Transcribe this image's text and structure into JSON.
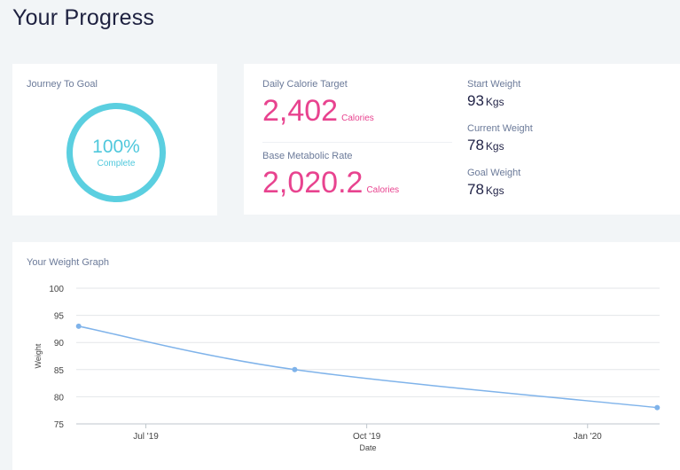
{
  "page": {
    "title": "Your Progress"
  },
  "journey": {
    "label": "Journey To Goal",
    "percent": "100%",
    "status": "Complete"
  },
  "calories": {
    "target_label": "Daily Calorie Target",
    "target_value": "2,402",
    "target_unit": "Calories",
    "bmr_label": "Base Metabolic Rate",
    "bmr_value": "2,020.2",
    "bmr_unit": "Calories"
  },
  "weights": {
    "start_label": "Start Weight",
    "start_value": "93",
    "start_unit": "Kgs",
    "current_label": "Current Weight",
    "current_value": "78",
    "current_unit": "Kgs",
    "goal_label": "Goal Weight",
    "goal_value": "78",
    "goal_unit": "Kgs"
  },
  "colors": {
    "accent_pink": "#e8438f",
    "accent_cyan": "#5bcfe0",
    "line_blue": "#7fb3ea"
  },
  "chart_data": {
    "type": "line",
    "title": "Your Weight Graph",
    "xlabel": "Date",
    "ylabel": "Weight",
    "ylim": [
      75,
      100
    ],
    "yticks": [
      75,
      80,
      85,
      90,
      95,
      100
    ],
    "xlim": [
      "2019-06-02",
      "2020-01-31"
    ],
    "xticks": [
      {
        "label": "Jul '19",
        "date": "2019-07-01"
      },
      {
        "label": "Oct '19",
        "date": "2019-10-01"
      },
      {
        "label": "Jan '20",
        "date": "2020-01-01"
      }
    ],
    "grid": true,
    "series": [
      {
        "name": "Weight",
        "points": [
          {
            "date": "2019-06-03",
            "value": 93
          },
          {
            "date": "2019-09-01",
            "value": 85
          },
          {
            "date": "2020-01-30",
            "value": 78
          }
        ]
      }
    ]
  }
}
